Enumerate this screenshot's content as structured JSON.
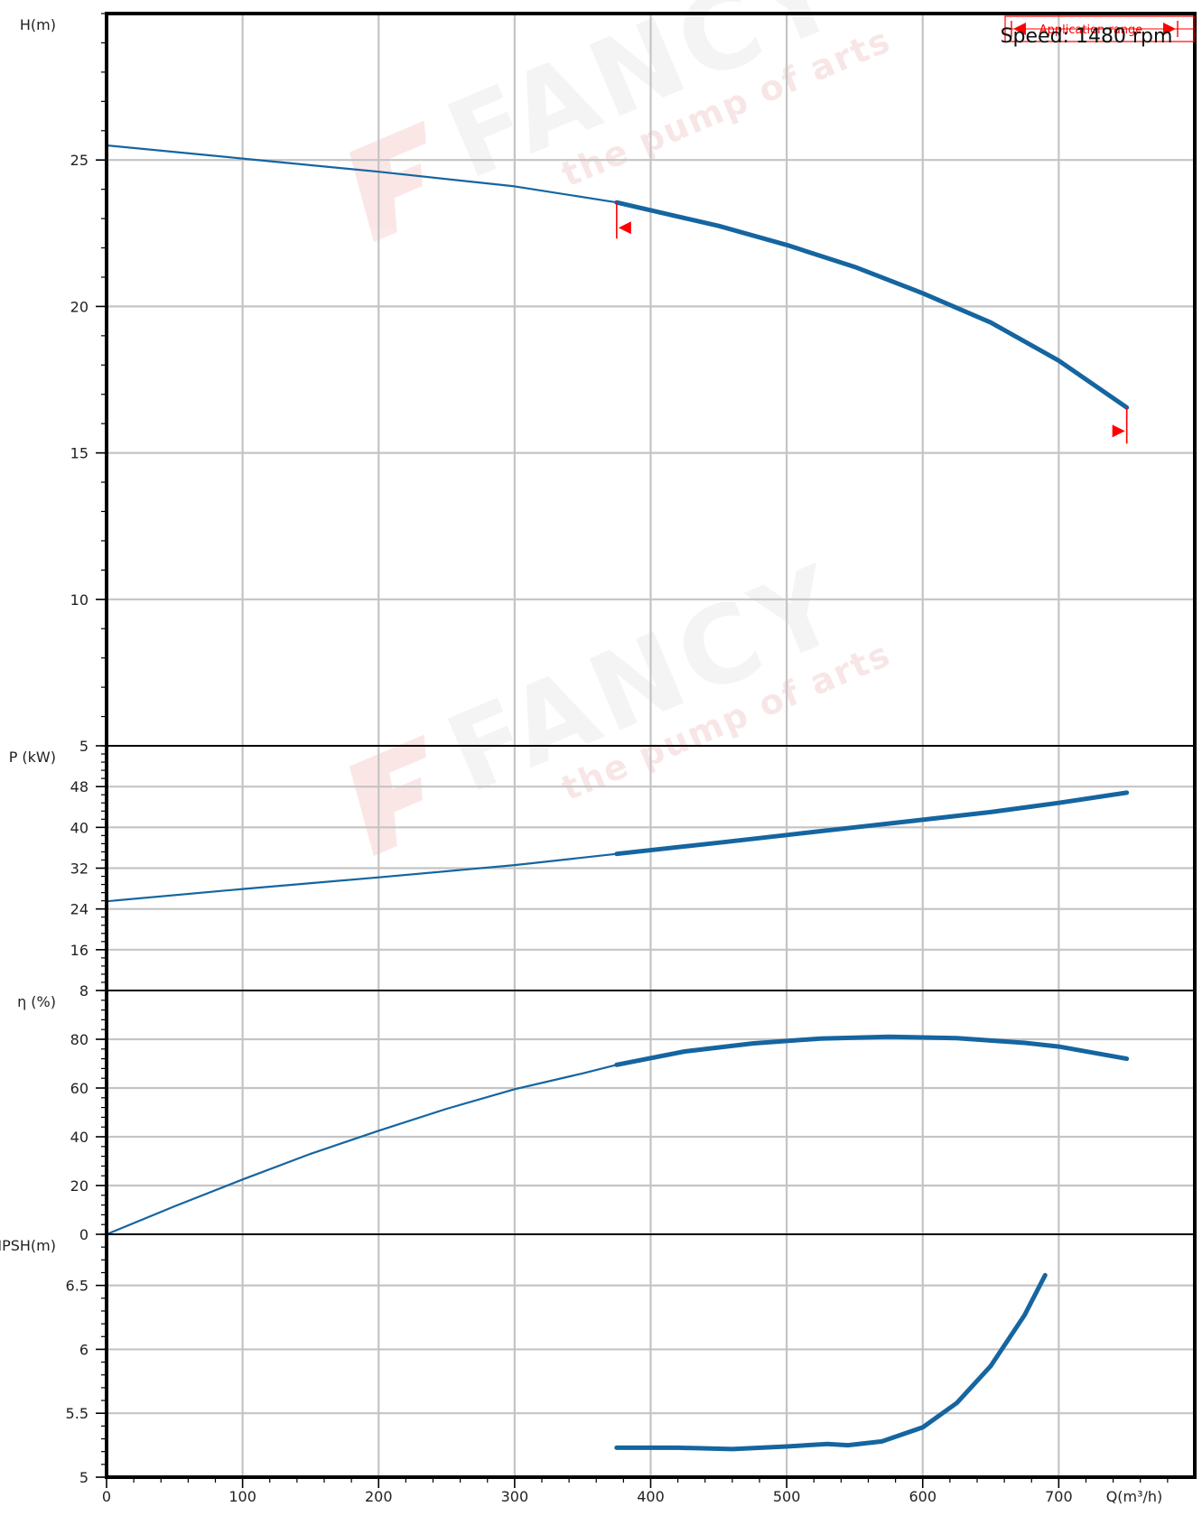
{
  "chart_data": {
    "type": "line",
    "speed_note": "Speed: 1480 rpm",
    "application_range_label": "Application range",
    "x_axis": {
      "label": "Q(m³/h)",
      "range": [
        0,
        800
      ],
      "ticks": [
        0,
        100,
        200,
        300,
        400,
        500,
        600,
        700
      ]
    },
    "colors": {
      "curve": "#1565a0",
      "range_marker": "#ff0000",
      "grid": "#c4c4c4",
      "frame": "#000000"
    },
    "application_range": [
      375,
      750
    ],
    "watermark": {
      "brand": "FANCY",
      "tagline": "the pump of arts"
    },
    "panels": [
      {
        "id": "head",
        "ylabel": "H(m)",
        "ylim": [
          5,
          30
        ],
        "ticks": [
          5,
          10,
          15,
          20,
          25
        ],
        "series": [
          {
            "x": [
              0,
              100,
              200,
              300,
              375
            ],
            "y": [
              25.5,
              25.05,
              24.6,
              24.1,
              23.55
            ]
          },
          {
            "x": [
              375,
              450,
              500,
              550,
              600,
              650,
              700,
              750
            ],
            "y": [
              23.55,
              22.75,
              22.1,
              21.35,
              20.45,
              19.45,
              18.15,
              16.55
            ]
          }
        ]
      },
      {
        "id": "power",
        "ylabel": "P (kW)",
        "ylim": [
          8,
          56
        ],
        "ticks": [
          8,
          16,
          24,
          32,
          40,
          48
        ],
        "series": [
          {
            "x": [
              0,
              100,
              200,
              300,
              375
            ],
            "y": [
              25.5,
              27.9,
              30.2,
              32.6,
              34.8
            ]
          },
          {
            "x": [
              375,
              450,
              500,
              550,
              600,
              650,
              700,
              750
            ],
            "y": [
              34.8,
              37.0,
              38.5,
              40.0,
              41.5,
              43.0,
              44.8,
              46.8
            ]
          }
        ]
      },
      {
        "id": "efficiency",
        "ylabel": "η (%)",
        "ylim": [
          0,
          100
        ],
        "ticks": [
          0,
          20,
          40,
          60,
          80
        ],
        "series": [
          {
            "x": [
              0,
              50,
              100,
              150,
              200,
              250,
              300,
              350,
              375
            ],
            "y": [
              0,
              11.5,
              22.5,
              33,
              42.5,
              51.5,
              59.5,
              66,
              69.5
            ]
          },
          {
            "x": [
              375,
              425,
              475,
              525,
              575,
              625,
              675,
              700,
              750
            ],
            "y": [
              69.5,
              75,
              78.3,
              80.3,
              81,
              80.5,
              78.5,
              77,
              72
            ]
          }
        ]
      },
      {
        "id": "npsh",
        "ylabel": "NPSH(m)",
        "ylim": [
          5,
          6.9
        ],
        "ticks": [
          5,
          5.5,
          6,
          6.5
        ],
        "series": [
          {
            "x": [
              375,
              420,
              460,
              500,
              530,
              545,
              570,
              600,
              625,
              650,
              675,
              690
            ],
            "y": [
              5.23,
              5.23,
              5.22,
              5.24,
              5.26,
              5.25,
              5.28,
              5.39,
              5.58,
              5.87,
              6.27,
              6.58
            ]
          }
        ]
      }
    ]
  }
}
